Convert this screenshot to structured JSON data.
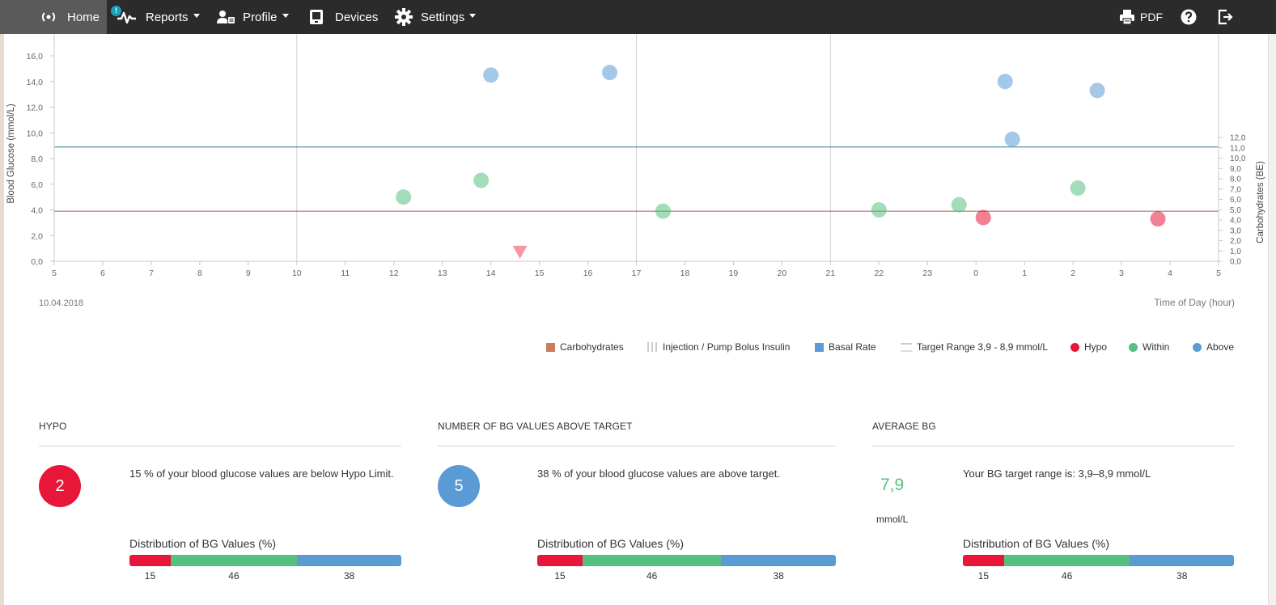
{
  "nav": {
    "home": "Home",
    "reports": "Reports",
    "reports_badge": "!",
    "profile": "Profile",
    "devices": "Devices",
    "settings": "Settings",
    "pdf": "PDF"
  },
  "colors": {
    "hypo": "#e8173a",
    "within": "#56c07f",
    "above": "#5b9bd5",
    "carbohydrates": "#c87d5a",
    "target_upper": "#2a7f91",
    "target_lower": "#a05a62"
  },
  "chart": {
    "date": "10.04.2018",
    "xlabel": "Time of Day (hour)",
    "ylabel_left": "Blood Glucose (mmol/L)",
    "ylabel_right": "Carbohydrates (BE)"
  },
  "chart_data": {
    "type": "scatter",
    "x_ticks": [
      "5",
      "6",
      "7",
      "8",
      "9",
      "10",
      "11",
      "12",
      "13",
      "14",
      "15",
      "16",
      "17",
      "18",
      "19",
      "20",
      "21",
      "22",
      "23",
      "0",
      "1",
      "2",
      "3",
      "4",
      "5"
    ],
    "y_left_ticks": [
      "0,0",
      "2,0",
      "4,0",
      "6,0",
      "8,0",
      "10,0",
      "12,0",
      "14,0",
      "16,0"
    ],
    "y_left_range": [
      0,
      16
    ],
    "y_right_ticks": [
      "0,0",
      "1,0",
      "2,0",
      "3,0",
      "4,0",
      "5,0",
      "6,0",
      "7,0",
      "8,0",
      "9,0",
      "10,0",
      "11,0",
      "12,0"
    ],
    "y_right_range": [
      0,
      12
    ],
    "vertical_grid_hours": [
      10,
      17,
      21
    ],
    "target_range": [
      3.9,
      8.9
    ],
    "series": [
      {
        "name": "Hypo",
        "points": [
          [
            24.15,
            3.4
          ],
          [
            27.75,
            3.3
          ]
        ]
      },
      {
        "name": "Within",
        "points": [
          [
            12.2,
            5.0
          ],
          [
            13.8,
            6.3
          ],
          [
            17.55,
            3.9
          ],
          [
            22.0,
            4.0
          ],
          [
            23.65,
            4.4
          ],
          [
            26.1,
            5.7
          ]
        ]
      },
      {
        "name": "Above",
        "points": [
          [
            14.0,
            14.5
          ],
          [
            16.45,
            14.7
          ],
          [
            24.6,
            14.0
          ],
          [
            24.75,
            9.5
          ],
          [
            26.5,
            13.3
          ]
        ]
      }
    ],
    "bolus_markers": [
      [
        14.6,
        0.7
      ]
    ]
  },
  "legend": [
    {
      "label": "Carbohydrates",
      "icon": "square-carbohydrates"
    },
    {
      "label": "Injection / Pump Bolus Insulin",
      "icon": "bars-bolus"
    },
    {
      "label": "Basal Rate",
      "icon": "square-basal"
    },
    {
      "label": "Target Range 3,9 - 8,9 mmol/L",
      "icon": "line-target"
    },
    {
      "label": "Hypo",
      "icon": "dot-hypo"
    },
    {
      "label": "Within",
      "icon": "dot-within"
    },
    {
      "label": "Above",
      "icon": "dot-above"
    }
  ],
  "cards": {
    "hypo": {
      "title": "HYPO",
      "value": "2",
      "text": "15 % of your blood glucose values are below Hypo Limit.",
      "dist_label": "Distribution of BG Values (%)",
      "dist": [
        "15",
        "46",
        "38"
      ]
    },
    "above": {
      "title": "NUMBER OF BG VALUES ABOVE TARGET",
      "value": "5",
      "text": "38 % of your blood glucose values are above target.",
      "dist_label": "Distribution of BG Values (%)",
      "dist": [
        "15",
        "46",
        "38"
      ]
    },
    "average": {
      "title": "AVERAGE BG",
      "value": "7,9",
      "unit": "mmol/L",
      "text": "Your BG target range is: 3,9–8,9 mmol/L",
      "dist_label": "Distribution of BG Values (%)",
      "dist": [
        "15",
        "46",
        "38"
      ]
    }
  },
  "distribution_percent": {
    "hypo": 15,
    "within": 46,
    "above": 38
  }
}
